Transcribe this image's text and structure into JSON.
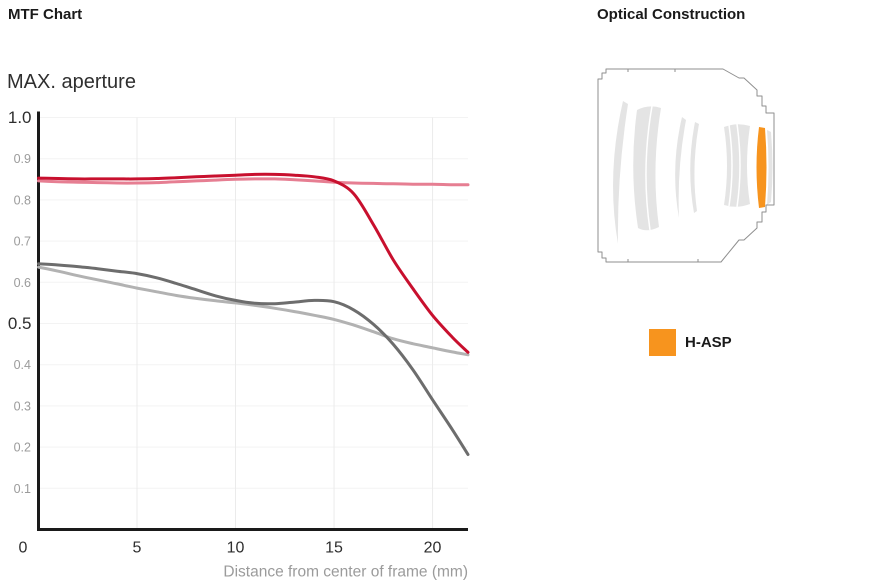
{
  "mtf_section": {
    "title": "MTF Chart",
    "subtitle": "MAX. aperture"
  },
  "optical_section": {
    "title": "Optical Construction",
    "legend": {
      "label": "H-ASP",
      "color": "#f7941e"
    }
  },
  "chart_data": {
    "type": "line",
    "title": "MAX. aperture",
    "xlabel": "Distance from center of frame (mm)",
    "ylabel": "",
    "xlim": [
      0,
      21.8
    ],
    "ylim": [
      0,
      1.0
    ],
    "x_ticks": [
      0,
      5,
      10,
      15,
      20
    ],
    "y_ticks_major": [
      1.0,
      0.5
    ],
    "y_ticks_minor": [
      0.9,
      0.8,
      0.7,
      0.6,
      0.4,
      0.3,
      0.2,
      0.1
    ],
    "grid": true,
    "legend_position": "none",
    "axis_color": "#1a1a1a",
    "grid_color_h": "#f3f3f3",
    "grid_color_v": "#ebebeb",
    "tick_label_color_major": "#2e2e2e",
    "tick_label_color_minor": "#9b9b9b",
    "x": [
      0,
      1,
      2,
      3,
      4,
      5,
      6,
      7,
      8,
      9,
      10,
      11,
      12,
      13,
      14,
      15,
      16,
      17,
      18,
      19,
      20,
      21,
      21.8
    ],
    "series": [
      {
        "name": "red-line",
        "color": "#c8102e",
        "values": [
          0.853,
          0.852,
          0.851,
          0.851,
          0.851,
          0.851,
          0.852,
          0.854,
          0.856,
          0.858,
          0.86,
          0.862,
          0.862,
          0.86,
          0.856,
          0.846,
          0.815,
          0.74,
          0.655,
          0.585,
          0.52,
          0.467,
          0.43
        ]
      },
      {
        "name": "pink-line",
        "color": "#e67e92",
        "values": [
          0.846,
          0.844,
          0.843,
          0.842,
          0.841,
          0.841,
          0.842,
          0.844,
          0.846,
          0.848,
          0.85,
          0.851,
          0.851,
          0.849,
          0.846,
          0.843,
          0.841,
          0.84,
          0.839,
          0.838,
          0.838,
          0.837,
          0.837
        ]
      },
      {
        "name": "dark-gray-line",
        "color": "#6d6d6d",
        "values": [
          0.645,
          0.642,
          0.638,
          0.633,
          0.627,
          0.621,
          0.611,
          0.597,
          0.582,
          0.567,
          0.556,
          0.549,
          0.548,
          0.552,
          0.556,
          0.553,
          0.533,
          0.498,
          0.45,
          0.388,
          0.315,
          0.243,
          0.182
        ]
      },
      {
        "name": "light-gray-line",
        "color": "#b2b2b2",
        "values": [
          0.637,
          0.627,
          0.616,
          0.606,
          0.596,
          0.586,
          0.577,
          0.568,
          0.561,
          0.555,
          0.55,
          0.544,
          0.537,
          0.529,
          0.52,
          0.51,
          0.496,
          0.48,
          0.463,
          0.451,
          0.441,
          0.431,
          0.424
        ]
      }
    ]
  }
}
